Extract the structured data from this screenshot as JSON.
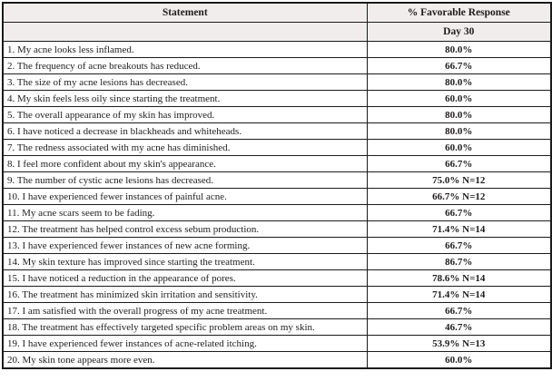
{
  "table": {
    "columns": {
      "statement_header": "Statement",
      "response_header": "% Favorable Response"
    },
    "sub_header": {
      "statement_cell": "",
      "response_cell": "Day 30"
    },
    "rows": [
      {
        "statement": "1. My acne looks less inflamed.",
        "value": "80.0%"
      },
      {
        "statement": "2. The frequency of acne breakouts has reduced.",
        "value": "66.7%"
      },
      {
        "statement": "3. The size of my acne lesions has decreased.",
        "value": "80.0%"
      },
      {
        "statement": "4. My skin feels less oily since starting the treatment.",
        "value": "60.0%"
      },
      {
        "statement": "5. The overall appearance of my skin has improved.",
        "value": "80.0%"
      },
      {
        "statement": "6. I have noticed a decrease in blackheads and whiteheads.",
        "value": "80.0%"
      },
      {
        "statement": "7. The redness associated with my acne has diminished.",
        "value": "60.0%"
      },
      {
        "statement": "8. I feel more confident about my skin's appearance.",
        "value": "66.7%"
      },
      {
        "statement": "9. The number of cystic acne lesions has decreased.",
        "value": "75.0% N=12"
      },
      {
        "statement": "10. I have experienced fewer instances of painful acne.",
        "value": "66.7% N=12"
      },
      {
        "statement": "11. My acne scars seem to be fading.",
        "value": "66.7%"
      },
      {
        "statement": "12. The treatment has helped control excess sebum production.",
        "value": "71.4% N=14"
      },
      {
        "statement": "13. I have experienced fewer instances of new acne forming.",
        "value": "66.7%"
      },
      {
        "statement": "14. My skin texture has improved since starting the treatment.",
        "value": "86.7%"
      },
      {
        "statement": "15. I have noticed a reduction in the appearance of pores.",
        "value": "78.6% N=14"
      },
      {
        "statement": "16. The treatment has minimized skin irritation and sensitivity.",
        "value": "71.4% N=14"
      },
      {
        "statement": "17. I am satisfied with the overall progress of my acne treatment.",
        "value": "66.7%"
      },
      {
        "statement": "18. The treatment has effectively targeted specific problem areas on my skin.",
        "value": "46.7%"
      },
      {
        "statement": "19. I have experienced fewer instances of acne-related itching.",
        "value": "53.9% N=13"
      },
      {
        "statement": "20. My skin tone appears more even.",
        "value": "60.0%"
      }
    ]
  },
  "colors": {
    "header_bg": "#f0edec",
    "border": "#1b1b1b",
    "text": "#1f1c1c"
  }
}
